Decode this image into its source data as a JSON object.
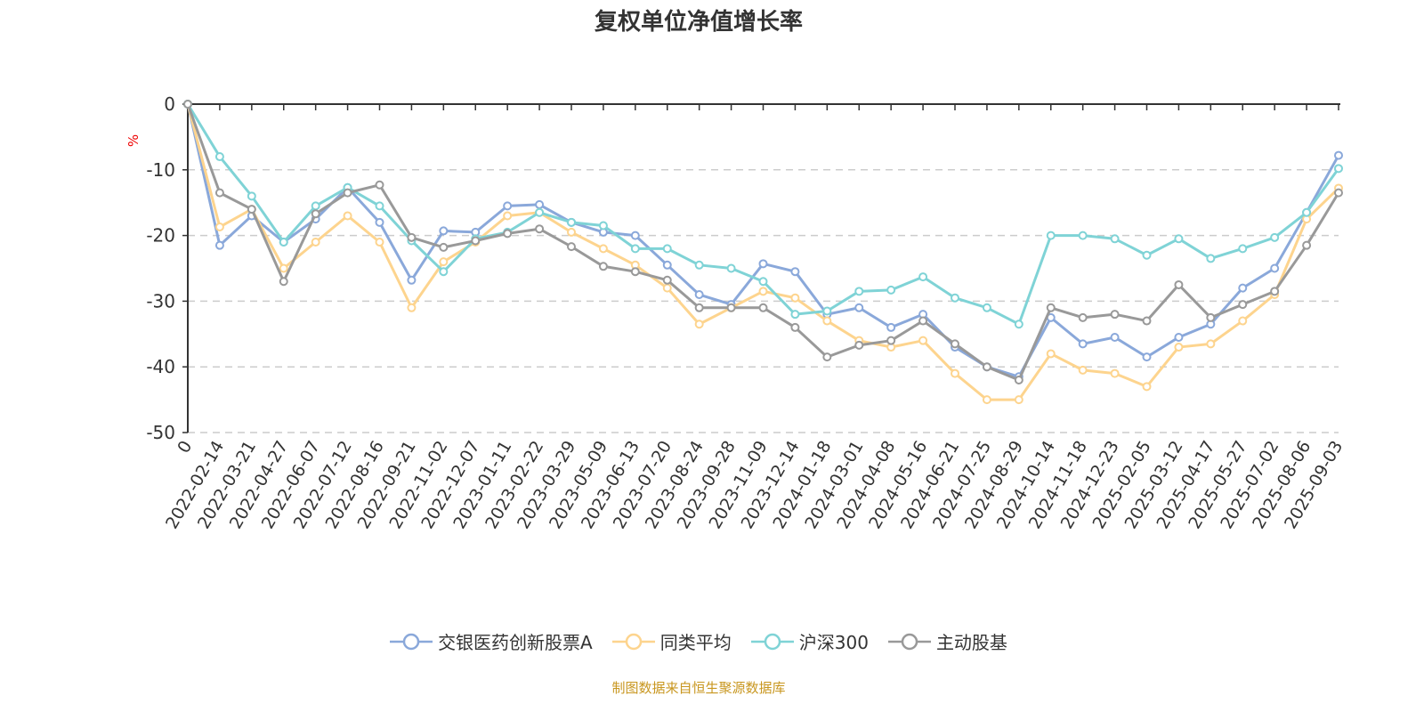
{
  "title": "复权单位净值增长率",
  "source": "制图数据来自恒生聚源数据库",
  "chart_data": {
    "type": "line",
    "title": "复权单位净值增长率",
    "ylabel": "%",
    "ylim": [
      -50,
      0
    ],
    "yticks": [
      0,
      -10,
      -20,
      -30,
      -40,
      -50
    ],
    "grid": true,
    "legend_position": "bottom",
    "categories": [
      "0",
      "2022-02-14",
      "2022-03-21",
      "2022-04-27",
      "2022-06-07",
      "2022-07-12",
      "2022-08-16",
      "2022-09-21",
      "2022-11-02",
      "2022-12-07",
      "2023-01-11",
      "2023-02-22",
      "2023-03-29",
      "2023-05-09",
      "2023-06-13",
      "2023-07-20",
      "2023-08-24",
      "2023-09-28",
      "2023-11-09",
      "2023-12-14",
      "2024-01-18",
      "2024-03-01",
      "2024-04-08",
      "2024-05-16",
      "2024-06-21",
      "2024-07-25",
      "2024-08-29",
      "2024-10-14",
      "2024-11-18",
      "2024-12-23",
      "2025-02-05",
      "2025-03-12",
      "2025-04-17",
      "2025-05-27",
      "2025-07-02",
      "2025-08-06",
      "2025-09-03"
    ],
    "series": [
      {
        "name": "交银医药创新股票A",
        "color": "#8aa8da",
        "values": [
          0,
          -21.5,
          -17,
          -21,
          -17.5,
          -12.7,
          -18,
          -26.8,
          -19.3,
          -19.5,
          -15.5,
          -15.3,
          -18,
          -19.5,
          -20,
          -24.5,
          -29,
          -30.5,
          -24.3,
          -25.5,
          -32,
          -31,
          -34,
          -32,
          -37,
          -40,
          -41.5,
          -32.5,
          -36.5,
          -35.5,
          -38.5,
          -35.5,
          -33.5,
          -28,
          -25,
          -16.5,
          -7.8
        ]
      },
      {
        "name": "同类平均",
        "color": "#fdd48e",
        "values": [
          0,
          -18.7,
          -16,
          -25,
          -21,
          -17,
          -21,
          -31,
          -24,
          -21,
          -17,
          -16.5,
          -19.5,
          -22,
          -24.5,
          -28,
          -33.5,
          -31,
          -28.5,
          -29.5,
          -33,
          -36,
          -37,
          -36,
          -41,
          -45,
          -45,
          -38,
          -40.5,
          -41,
          -43,
          -37,
          -36.5,
          -33,
          -29,
          -17.5,
          -12.8
        ]
      },
      {
        "name": "沪深300",
        "color": "#7fd3d6",
        "values": [
          0,
          -8,
          -14,
          -21,
          -15.5,
          -12.7,
          -15.5,
          -20.8,
          -25.5,
          -20.5,
          -19.5,
          -16.5,
          -18,
          -18.5,
          -22,
          -22,
          -24.5,
          -25,
          -27,
          -32,
          -31.5,
          -28.5,
          -28.3,
          -26.3,
          -29.5,
          -31,
          -33.5,
          -20,
          -20,
          -20.5,
          -23,
          -20.5,
          -23.5,
          -22,
          -20.3,
          -16.5,
          -9.8
        ]
      },
      {
        "name": "主动股基",
        "color": "#999999",
        "values": [
          0,
          -13.5,
          -16,
          -27,
          -16.7,
          -13.5,
          -12.3,
          -20.3,
          -21.8,
          -20.8,
          -19.7,
          -19,
          -21.7,
          -24.7,
          -25.5,
          -26.8,
          -31,
          -31,
          -31,
          -34,
          -38.5,
          -36.7,
          -36,
          -33,
          -36.5,
          -40,
          -42,
          -31,
          -32.5,
          -32,
          -33,
          -27.5,
          -32.5,
          -30.5,
          -28.5,
          -21.5,
          -13.5
        ]
      }
    ]
  }
}
